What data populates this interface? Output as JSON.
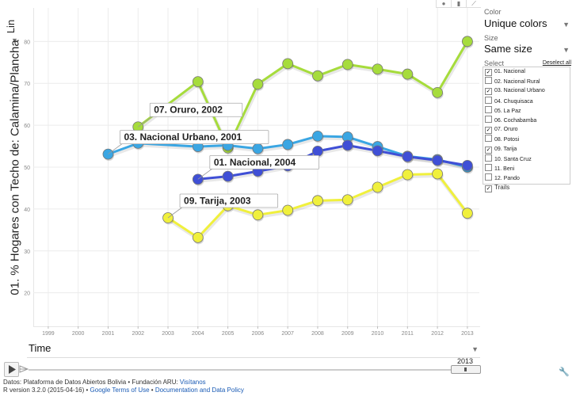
{
  "y_axis": {
    "menu_label": "Lin",
    "label": "01. % Hogares con Techo de: Calamina/Plancha"
  },
  "x_axis": {
    "label": "Time"
  },
  "view_icons": [
    "bubble-chart-icon",
    "bar-chart-icon",
    "line-chart-icon"
  ],
  "color": {
    "label": "Color",
    "value": "Unique colors"
  },
  "size": {
    "label": "Size",
    "value": "Same size"
  },
  "select": {
    "label": "Select",
    "deselect_all": "Deselect all",
    "items": [
      {
        "label": "01. Nacional",
        "checked": true
      },
      {
        "label": "02. Nacional Rural",
        "checked": false
      },
      {
        "label": "03. Nacional Urbano",
        "checked": true
      },
      {
        "label": "04. Chuquisaca",
        "checked": false
      },
      {
        "label": "05. La Paz",
        "checked": false
      },
      {
        "label": "06. Cochabamba",
        "checked": false
      },
      {
        "label": "07. Oruro",
        "checked": true
      },
      {
        "label": "08. Potosi",
        "checked": false
      },
      {
        "label": "09. Tarija",
        "checked": true
      },
      {
        "label": "10. Santa Cruz",
        "checked": false
      },
      {
        "label": "11. Beni",
        "checked": false
      },
      {
        "label": "12. Pando",
        "checked": false
      }
    ],
    "trails_label": "Trails",
    "trails_checked": true
  },
  "time_slider": {
    "current": "2013"
  },
  "footer": {
    "line1_text": "Datos: Plataforma de Datos Abiertos Bolivia • Fundación ARU:",
    "line1_link": "Visítanos",
    "line2_text": "R version 3.2.0 (2015-04-16) •",
    "line2_link1": "Google Terms of Use",
    "line2_sep": "•",
    "line2_link2": "Documentation and Data Policy"
  },
  "chart_data": {
    "type": "line",
    "xlabel": "Time",
    "ylabel": "01. % Hogares con Techo de: Calamina/Plancha",
    "x_ticks": [
      1999,
      2000,
      2001,
      2002,
      2003,
      2004,
      2005,
      2006,
      2007,
      2008,
      2009,
      2010,
      2011,
      2012,
      2013
    ],
    "y_ticks": [
      20,
      30,
      40,
      50,
      60,
      70,
      80
    ],
    "xlim": [
      1998.5,
      2013.4
    ],
    "ylim": [
      12,
      88
    ],
    "grid": true,
    "legend": "none",
    "series": [
      {
        "name": "07. Oruro",
        "color": "#a6dc3c",
        "x": [
          2002,
          2004,
          2005,
          2006,
          2007,
          2008,
          2009,
          2010,
          2011,
          2012,
          2013
        ],
        "y": [
          59.6,
          70.4,
          54.6,
          69.8,
          74.7,
          71.8,
          74.5,
          73.4,
          72.2,
          67.8,
          80.0
        ]
      },
      {
        "name": "03. Nacional Urbano",
        "color": "#3aa6e3",
        "x": [
          2001,
          2002,
          2004,
          2005,
          2006,
          2007,
          2008,
          2009,
          2010,
          2011,
          2012,
          2013
        ],
        "y": [
          53.1,
          55.7,
          54.9,
          55.2,
          54.4,
          55.4,
          57.4,
          57.2,
          54.9,
          52.6,
          51.8,
          50.0
        ]
      },
      {
        "name": "01. Nacional",
        "color": "#3f4fd6",
        "x": [
          2004,
          2005,
          2006,
          2007,
          2008,
          2009,
          2010,
          2011,
          2012,
          2013
        ],
        "y": [
          47.1,
          47.8,
          49.0,
          50.3,
          53.8,
          55.2,
          53.9,
          52.5,
          51.6,
          50.4
        ]
      },
      {
        "name": "09. Tarija",
        "color": "#f0f03c",
        "x": [
          2003,
          2004,
          2005,
          2006,
          2007,
          2008,
          2009,
          2010,
          2011,
          2012,
          2013
        ],
        "y": [
          37.9,
          33.2,
          40.8,
          38.6,
          39.7,
          42.0,
          42.2,
          45.2,
          48.2,
          48.4,
          39.0
        ]
      }
    ],
    "annotations": [
      {
        "text": "07. Oruro, 2002",
        "series": "07. Oruro",
        "x": 2002
      },
      {
        "text": "03. Nacional Urbano, 2001",
        "series": "03. Nacional Urbano",
        "x": 2001
      },
      {
        "text": "01. Nacional, 2004",
        "series": "01. Nacional",
        "x": 2004
      },
      {
        "text": "09. Tarija, 2003",
        "series": "09. Tarija",
        "x": 2003
      }
    ]
  }
}
